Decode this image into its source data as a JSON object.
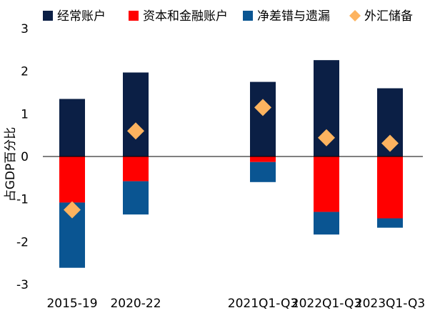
{
  "chart_data": {
    "type": "bar",
    "stacked": true,
    "categories": [
      "2015-19",
      "2020-22",
      "2021Q1-Q3",
      "2022Q1-Q3",
      "2023Q1-Q3"
    ],
    "series": [
      {
        "name": "经常账户",
        "type": "bar",
        "color": "#0b1f45",
        "values": [
          1.35,
          1.97,
          1.75,
          2.26,
          1.6
        ]
      },
      {
        "name": "资本和金融账户",
        "type": "bar",
        "color": "#ff0000",
        "values": [
          -1.08,
          -0.58,
          -0.13,
          -1.3,
          -1.45
        ]
      },
      {
        "name": "净差错与遗漏",
        "type": "bar",
        "color": "#0a5592",
        "values": [
          -1.53,
          -0.78,
          -0.47,
          -0.53,
          -0.22
        ]
      },
      {
        "name": "外汇储备",
        "type": "marker",
        "marker": "diamond",
        "color": "#fdb35f",
        "values": [
          -1.25,
          0.6,
          1.15,
          0.44,
          0.31
        ]
      }
    ],
    "xlabel": "",
    "ylabel": "占GDP百分比",
    "ylim": [
      -3,
      3
    ],
    "yticks": [
      "-3",
      "-2",
      "-1",
      "0",
      "1",
      "2",
      "3"
    ],
    "grid": false,
    "legend": "top"
  }
}
